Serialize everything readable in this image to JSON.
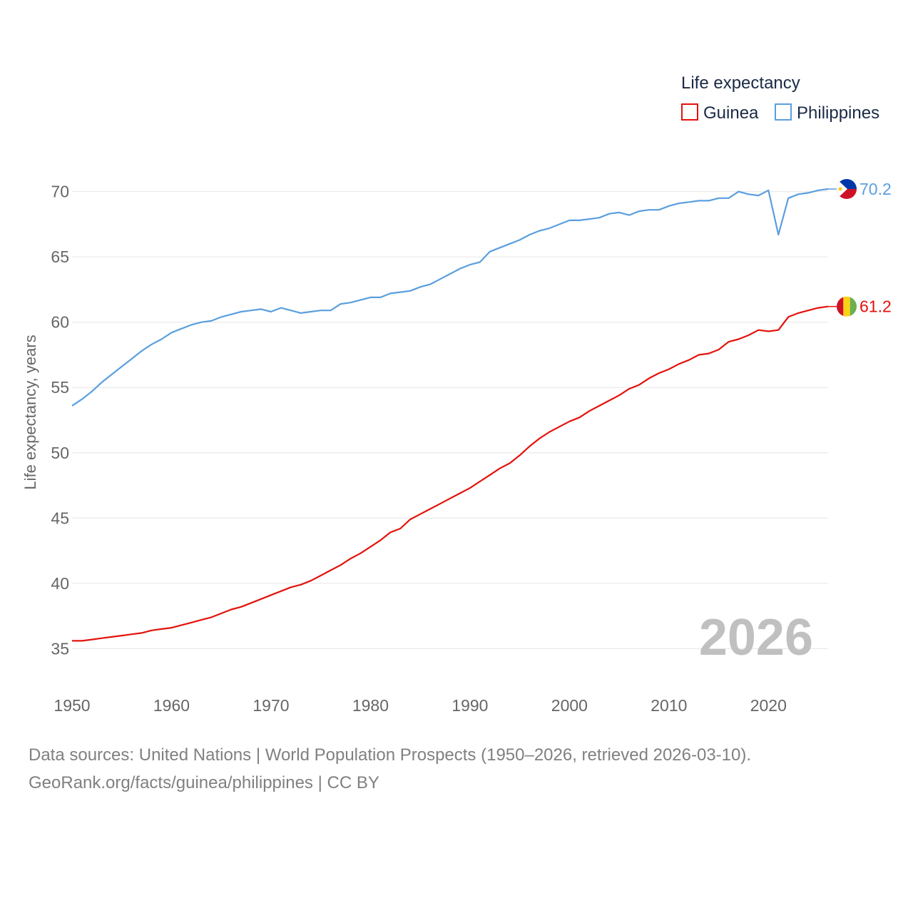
{
  "chart_data": {
    "type": "line",
    "ylabel": "Life expectancy, years",
    "xlabel": "",
    "ylim": [
      33,
      72
    ],
    "xlim": [
      1950,
      2026
    ],
    "yticks": [
      35,
      40,
      45,
      50,
      55,
      60,
      65,
      70
    ],
    "xticks": [
      1950,
      1960,
      1970,
      1980,
      1990,
      2000,
      2010,
      2020
    ],
    "grid": true,
    "legend": {
      "title": "Life expectancy",
      "position": "top-right",
      "entries": [
        "Guinea",
        "Philippines"
      ]
    },
    "current_year": "2026",
    "series": [
      {
        "name": "Guinea",
        "color": "#e3120b",
        "end_label": "61.2",
        "flag": "guinea-flag-icon",
        "x": [
          1950,
          1951,
          1952,
          1953,
          1954,
          1955,
          1956,
          1957,
          1958,
          1959,
          1960,
          1961,
          1962,
          1963,
          1964,
          1965,
          1966,
          1967,
          1968,
          1969,
          1970,
          1971,
          1972,
          1973,
          1974,
          1975,
          1976,
          1977,
          1978,
          1979,
          1980,
          1981,
          1982,
          1983,
          1984,
          1985,
          1986,
          1987,
          1988,
          1989,
          1990,
          1991,
          1992,
          1993,
          1994,
          1995,
          1996,
          1997,
          1998,
          1999,
          2000,
          2001,
          2002,
          2003,
          2004,
          2005,
          2006,
          2007,
          2008,
          2009,
          2010,
          2011,
          2012,
          2013,
          2014,
          2015,
          2016,
          2017,
          2018,
          2019,
          2020,
          2021,
          2022,
          2023,
          2024,
          2025,
          2026
        ],
        "values": [
          35.6,
          35.6,
          35.7,
          35.8,
          35.9,
          36.0,
          36.1,
          36.2,
          36.4,
          36.5,
          36.6,
          36.8,
          37.0,
          37.2,
          37.4,
          37.7,
          38.0,
          38.2,
          38.5,
          38.8,
          39.1,
          39.4,
          39.7,
          39.9,
          40.2,
          40.6,
          41.0,
          41.4,
          41.9,
          42.3,
          42.8,
          43.3,
          43.9,
          44.2,
          44.9,
          45.3,
          45.7,
          46.1,
          46.5,
          46.9,
          47.3,
          47.8,
          48.3,
          48.8,
          49.2,
          49.8,
          50.5,
          51.1,
          51.6,
          52.0,
          52.4,
          52.7,
          53.2,
          53.6,
          54.0,
          54.4,
          54.9,
          55.2,
          55.7,
          56.1,
          56.4,
          56.8,
          57.1,
          57.5,
          57.6,
          57.9,
          58.5,
          58.7,
          59.0,
          59.4,
          59.3,
          59.4,
          60.4,
          60.7,
          60.9,
          61.1,
          61.2
        ]
      },
      {
        "name": "Philippines",
        "color": "#5a9fdf",
        "end_label": "70.2",
        "flag": "philippines-flag-icon",
        "x": [
          1950,
          1951,
          1952,
          1953,
          1954,
          1955,
          1956,
          1957,
          1958,
          1959,
          1960,
          1961,
          1962,
          1963,
          1964,
          1965,
          1966,
          1967,
          1968,
          1969,
          1970,
          1971,
          1972,
          1973,
          1974,
          1975,
          1976,
          1977,
          1978,
          1979,
          1980,
          1981,
          1982,
          1983,
          1984,
          1985,
          1986,
          1987,
          1988,
          1989,
          1990,
          1991,
          1992,
          1993,
          1994,
          1995,
          1996,
          1997,
          1998,
          1999,
          2000,
          2001,
          2002,
          2003,
          2004,
          2005,
          2006,
          2007,
          2008,
          2009,
          2010,
          2011,
          2012,
          2013,
          2014,
          2015,
          2016,
          2017,
          2018,
          2019,
          2020,
          2021,
          2022,
          2023,
          2024,
          2025,
          2026
        ],
        "values": [
          53.6,
          54.1,
          54.7,
          55.4,
          56.0,
          56.6,
          57.2,
          57.8,
          58.3,
          58.7,
          59.2,
          59.5,
          59.8,
          60.0,
          60.1,
          60.4,
          60.6,
          60.8,
          60.9,
          61.0,
          60.8,
          61.1,
          60.9,
          60.7,
          60.8,
          60.9,
          60.9,
          61.4,
          61.5,
          61.7,
          61.9,
          61.9,
          62.2,
          62.3,
          62.4,
          62.7,
          62.9,
          63.3,
          63.7,
          64.1,
          64.4,
          64.6,
          65.4,
          65.7,
          66.0,
          66.3,
          66.7,
          67.0,
          67.2,
          67.5,
          67.8,
          67.8,
          67.9,
          68.0,
          68.3,
          68.4,
          68.2,
          68.5,
          68.6,
          68.6,
          68.9,
          69.1,
          69.2,
          69.3,
          69.3,
          69.5,
          69.5,
          70.0,
          69.8,
          69.7,
          70.1,
          66.7,
          69.5,
          69.8,
          69.9,
          70.1,
          70.2
        ]
      }
    ]
  },
  "footer": {
    "sources": "Data sources: United Nations | World Population Prospects (1950–2026, retrieved 2026-03-10).",
    "credit": "GeoRank.org/facts/guinea/philippines | CC BY"
  }
}
